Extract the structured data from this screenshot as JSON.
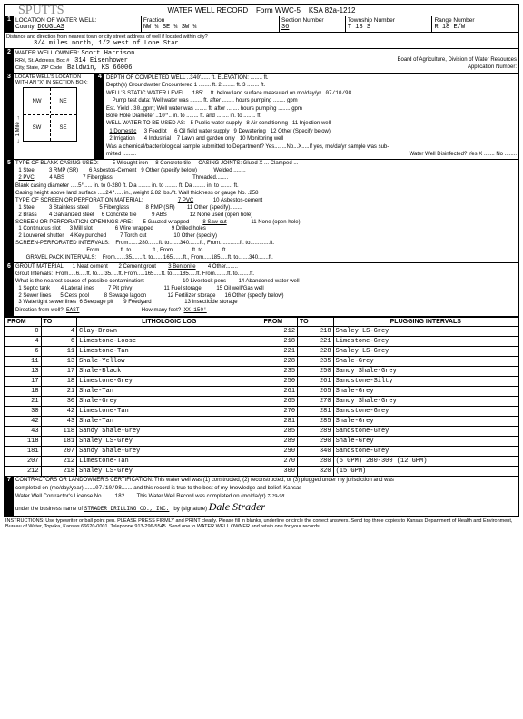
{
  "form": {
    "handwritten_top": "SPUTTS",
    "title": "WATER WELL RECORD",
    "form_no": "Form WWC-5",
    "ksa": "KSA 82a-1212"
  },
  "sec1": {
    "title": "LOCATION OF WATER WELL:",
    "county_label": "County:",
    "county": "DOUGLAS",
    "fraction_label": "Fraction",
    "fraction": "NW ¼ SE ¼ SW ¼",
    "section_label": "Section Number",
    "section": "36",
    "township_label": "Township Number",
    "township": "T 13 S",
    "range_label": "Range Number",
    "range": "R 18 E/W",
    "dist_label": "Distance and direction from nearest town or city street address of well if located within city?",
    "dist": "3/4 miles north, 1/2 west of Lone Star"
  },
  "sec2": {
    "title": "WATER WELL OWNER:",
    "owner": "Scott Harrison",
    "addr_label": "RR#, St. Address, Box #",
    "addr": "314 Eisenhower",
    "city_label": "City, State, ZIP Code",
    "city": "Baldwin, KS 66006",
    "board": "Board of Agriculture, Division of Water Resources",
    "appnum": "Application Number:"
  },
  "sec3": {
    "title": "LOCATE WELL'S LOCATION WITH AN \"X\" IN SECTION BOX:",
    "quads": [
      "NW",
      "NE",
      "SW",
      "SE"
    ],
    "side": "← 1 Mile →"
  },
  "sec4": {
    "title": "DEPTH OF COMPLETED WELL",
    "depth": "340",
    "depth_unit": "ft. ELEVATION:",
    "gw_label": "Depth(s) Groundwater Encountered",
    "gw1": "1",
    "gw2": "ft. 2",
    "gw3": "ft. 3",
    "swl_label": "WELL'S STATIC WATER LEVEL",
    "swl": "185",
    "swl_rest": "ft. below land surface measured on mo/day/yr",
    "swl_date": "07/10/98",
    "pump_label": "Pump test data: Well water was",
    "pump_rest": "ft. after ........ hours pumping ........ gpm",
    "yield_label": "Est. Yield",
    "yield": "30",
    "yield_rest": "gpm; Well water was ........ ft. after ........ hours pumping ........ gpm",
    "bore_label": "Bore Hole Diameter",
    "bore": "10\"",
    "bore_rest": "in. to ........ ft. and ........ in. to ........ ft.",
    "use_label": "WELL WATER TO BE USED AS:",
    "use_opts": [
      "1 Domestic",
      "2 Irrigation",
      "3 Feedlot",
      "4 Industrial",
      "5 Public water supply",
      "6 Oil field water supply",
      "7 Lawn and garden only",
      "8 Air conditioning",
      "9 Dewatering",
      "10 Monitoring well",
      "11 Injection well",
      "12 Other (Specify below)"
    ],
    "chem_label": "Was a chemical/bacteriological sample submitted to Department? Yes........No...X.....If yes, mo/da/yr sample was sub-",
    "mitted": "mitted .........",
    "disinfected": "Water Well Disinfected? Yes X ....... No ........"
  },
  "sec5": {
    "title": "TYPE OF BLANK CASING USED:",
    "opts_a": [
      "1 Steel",
      "2 PVC",
      "3 RMP (SR)",
      "4 ABS",
      "5 Wrought iron",
      "6 Asbestos-Cement",
      "7 Fiberglass",
      "8 Concrete tile",
      "9 Other (specify below)"
    ],
    "joints_label": "CASING JOINTS: Glued X ... Clamped ...",
    "joints2": "Welded ........",
    "joints3": "Threaded........",
    "bcd_label": "Blank casing diameter",
    "bcd": "5\"",
    "bcd_rest": "in. to 0-280 ft. Dia ........ in. to ........ ft. Da ........ in. to ........ ft.",
    "chal_label": "Casing height above land surface",
    "chal": "24\"",
    "chal_rest": "in., weight 2.82 lbs./ft. Wall thickness or gauge No. .258",
    "screen_label": "TYPE OF SCREEN OR PERFORATION MATERIAL:",
    "screen_opts": [
      "1 Steel",
      "2 Brass",
      "3 Stainless steel",
      "4 Galvanized steel",
      "5 Fiberglass",
      "6 Concrete tile",
      "7 PVC",
      "8 RMP (SR)",
      "9 ABS",
      "10 Asbestos-cement",
      "11 Other (specify)........",
      "12 None used (open hole)"
    ],
    "open_label": "SCREEN OR PERFORATION OPENINGS ARE:",
    "open_opts": [
      "1 Continuous slot",
      "2 Louvered shutter",
      "3 Mill slot",
      "4 Key punched",
      "5 Gauzed wrapped",
      "6 Wire wrapped",
      "7 Torch cut",
      "8 Saw cut",
      "9 Drilled holes",
      "10 Other (specify)",
      "11 None (open hole)"
    ],
    "spi_label": "SCREEN-PERFORATED INTERVALS:",
    "spi": "From.......280.......ft. to.......340.......ft., From.............ft. to.............ft.",
    "spi2": "From..............ft. to..............ft., From.............ft. to.............ft.",
    "gpi_label": "GRAVEL PACK INTERVALS:",
    "gpi": "From.......35.......ft. to.......165.......ft., From.....185.....ft. to.......340.......ft."
  },
  "sec6": {
    "title": "GROUT MATERIAL:",
    "opts": [
      "1 Neat cement",
      "2 Cement grout",
      "3 Bentonite",
      "4 Other........"
    ],
    "gi_label": "Grout Intervals:",
    "gi": "From.....6.....ft. to.....35.....ft. From.....165.....ft. to.....185.....ft. From........ft. to........ft.",
    "contam_label": "What is the nearest source of possible contamination:",
    "contam_opts": [
      "1 Septic tank",
      "2 Sewer lines",
      "3 Watertight sewer lines",
      "4 Lateral lines",
      "5 Cess pool",
      "6 Seepage pit",
      "7 Pit privy",
      "8 Sewage lagoon",
      "9 Feedyard",
      "10 Livestock pens",
      "11 Fuel storage",
      "12 Fertilizer storage",
      "13 Insecticide storage",
      "14 Abandoned water well",
      "15 Oil well/Gas well",
      "16 Other (specify below)"
    ],
    "dir_label": "Direction from well?",
    "dir": "EAST",
    "feet_label": "How many feet?",
    "feet": "XX 150'"
  },
  "log": {
    "cols": [
      "FROM",
      "TO",
      "LITHOLOGIC LOG",
      "FROM",
      "TO",
      "PLUGGING INTERVALS"
    ],
    "rows": [
      [
        "0",
        "4",
        "Clay-Brown",
        "212",
        "218",
        "Shaley LS-Grey"
      ],
      [
        "4",
        "6",
        "Limestone-Loose",
        "218",
        "221",
        "Limestone-Grey"
      ],
      [
        "6",
        "11",
        "Limestone-Tan",
        "221",
        "228",
        "Shaley LS-Grey"
      ],
      [
        "11",
        "13",
        "Shale-Yellow",
        "228",
        "235",
        "Shale-Grey"
      ],
      [
        "13",
        "17",
        "Shale-Black",
        "235",
        "250",
        "Sandy Shale-Grey"
      ],
      [
        "17",
        "18",
        "Limestone-Grey",
        "250",
        "261",
        "Sandstone-Silty"
      ],
      [
        "18",
        "21",
        "Shale-Tan",
        "261",
        "265",
        "Shale-Grey"
      ],
      [
        "21",
        "30",
        "Shale-Grey",
        "265",
        "270",
        "Sandy Shale-Grey"
      ],
      [
        "30",
        "42",
        "Limestone-Tan",
        "270",
        "281",
        "Sandstone-Grey"
      ],
      [
        "42",
        "43",
        "Shale-Tan",
        "281",
        "285",
        "Shale-Grey"
      ],
      [
        "43",
        "118",
        "Sandy Shale-Grey",
        "285",
        "289",
        "Sandstone-Grey"
      ],
      [
        "118",
        "181",
        "Shaley LS-Grey",
        "289",
        "290",
        "Shale-Grey"
      ],
      [
        "181",
        "207",
        "Sandy Shale-Grey",
        "290",
        "340",
        "Sandstone-Grey"
      ],
      [
        "207",
        "212",
        "Limestone-Tan",
        "270",
        "280",
        "(5 GPM) 280-300 (12 GPM)"
      ],
      [
        "212",
        "218",
        "Shaley LS-Grey",
        "300",
        "320",
        "(15 GPM)"
      ]
    ]
  },
  "sec7": {
    "title": "CONTRACTORS OR LANDOWNER'S CERTIFICATION: This water well was (1) constructed, (2) reconstructed, or (3) plugged under my jurisdiction and was",
    "completed_label": "completed on (mo/day/year) .......",
    "completed": "07/10/98",
    "rest": "and this record is true to the best of my knowledge and belief. Kansas",
    "lic_label": "Water Well Contractor's License No. .......",
    "lic": "182",
    "rec_label": "This Water Well Record was completed on (mo/da/yr)",
    "rec_date": "7-29-98",
    "biz_label": "under the business name of",
    "biz": "STRADER DRILLING CO., INC.",
    "sig_label": "by (signature)",
    "sig": "Dale Strader"
  },
  "footer": "INSTRUCTIONS: Use typewriter or ball point pen. PLEASE PRESS FIRMLY and PRINT clearly. Please fill in blanks, underline or circle the correct answers. Send top three copies to Kansas Department of Health and Environment, Bureau of Water, Topeka, Kansas 66620-0001. Telephone 913-296-5545. Send one to WATER WELL OWNER and retain one for your records."
}
